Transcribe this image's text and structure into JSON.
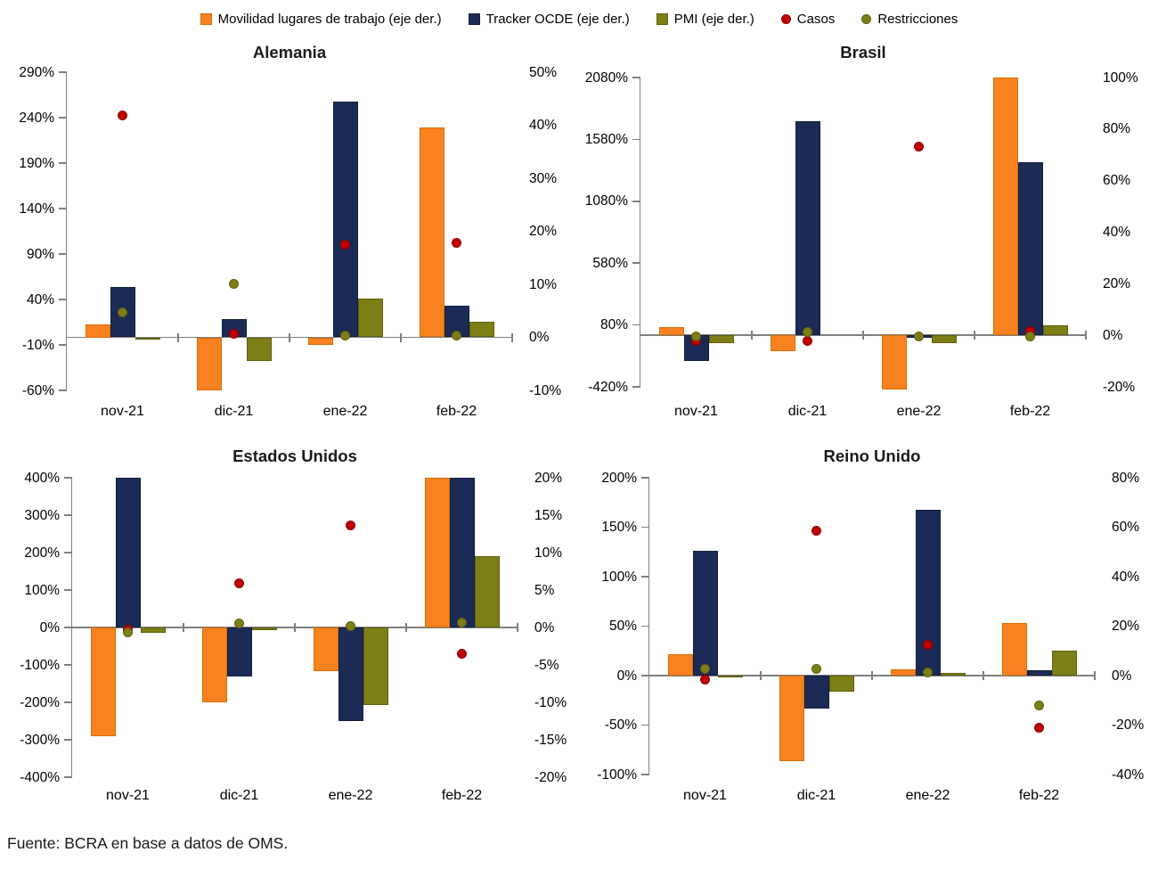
{
  "legend": {
    "items": [
      {
        "label": "Movilidad lugares de trabajo (eje der.)",
        "marker": "square",
        "series_key": "movilidad"
      },
      {
        "label": "Tracker OCDE (eje der.)",
        "marker": "square",
        "series_key": "tracker"
      },
      {
        "label": "PMI (eje der.)",
        "marker": "square",
        "series_key": "pmi"
      },
      {
        "label": "Casos",
        "marker": "dot",
        "series_key": "casos"
      },
      {
        "label": "Restricciones",
        "marker": "dot",
        "series_key": "restricciones"
      }
    ]
  },
  "footer": {
    "text": "Fuente: BCRA en base a datos de OMS."
  },
  "colors": {
    "movilidad": "#F8821F",
    "movilidad_border": "#D96D06",
    "tracker": "#1B2B55",
    "tracker_border": "#111F40",
    "pmi": "#7E7E17",
    "pmi_border": "#60600D",
    "casos": "#C00000",
    "casos_border": "#8F0000",
    "restricciones": "#7E7E17",
    "restricciones_border": "#60600D",
    "axis": "#7f7f7f"
  },
  "chart_data": [
    {
      "type": "bar",
      "title": "Alemania",
      "categories": [
        "nov-21",
        "dic-21",
        "ene-22",
        "feb-22"
      ],
      "left_axis": {
        "min": -60,
        "max": 290,
        "unit": "%",
        "ticks": [
          290,
          240,
          190,
          140,
          90,
          40,
          -10,
          -60
        ]
      },
      "right_axis": {
        "min": -10,
        "max": 50,
        "unit": "%",
        "ticks": [
          50,
          40,
          30,
          20,
          10,
          0,
          -10
        ]
      },
      "series": [
        {
          "name": "Movilidad lugares de trabajo (eje der.)",
          "key": "movilidad",
          "kind": "bar",
          "axis": "right",
          "values": [
            2.5,
            -10,
            -1.5,
            39.5
          ]
        },
        {
          "name": "Tracker OCDE (eje der.)",
          "key": "tracker",
          "kind": "bar",
          "axis": "right",
          "values": [
            9.5,
            3.5,
            44.5,
            6
          ]
        },
        {
          "name": "PMI (eje der.)",
          "key": "pmi",
          "kind": "bar",
          "axis": "right",
          "values": [
            -0.5,
            -4.5,
            7.3,
            3
          ]
        },
        {
          "name": "Casos",
          "key": "casos",
          "kind": "point",
          "axis": "left",
          "values": [
            242,
            2,
            100,
            102
          ]
        },
        {
          "name": "Restricciones",
          "key": "restricciones",
          "kind": "point",
          "axis": "left",
          "values": [
            26,
            57,
            0,
            0
          ]
        }
      ]
    },
    {
      "type": "bar",
      "title": "Brasil",
      "categories": [
        "nov-21",
        "dic-21",
        "ene-22",
        "feb-22"
      ],
      "left_axis": {
        "min": -420,
        "max": 2080,
        "unit": "%",
        "ticks": [
          2080,
          1580,
          1080,
          580,
          80,
          -420
        ]
      },
      "right_axis": {
        "min": -20,
        "max": 100,
        "unit": "%",
        "ticks": [
          100,
          80,
          60,
          40,
          20,
          0,
          -20
        ]
      },
      "series": [
        {
          "name": "Movilidad lugares de trabajo (eje der.)",
          "key": "movilidad",
          "kind": "bar",
          "axis": "right",
          "values": [
            3,
            -6,
            -21,
            100
          ]
        },
        {
          "name": "Tracker OCDE (eje der.)",
          "key": "tracker",
          "kind": "bar",
          "axis": "right",
          "values": [
            -10,
            83,
            -1,
            67
          ]
        },
        {
          "name": "PMI (eje der.)",
          "key": "pmi",
          "kind": "bar",
          "axis": "right",
          "values": [
            -3,
            0,
            -3,
            4
          ]
        },
        {
          "name": "Casos",
          "key": "casos",
          "kind": "point",
          "axis": "left",
          "values": [
            -48,
            -50,
            1520,
            30
          ]
        },
        {
          "name": "Restricciones",
          "key": "restricciones",
          "kind": "point",
          "axis": "left",
          "values": [
            -15,
            20,
            -15,
            -15
          ]
        }
      ]
    },
    {
      "type": "bar",
      "title": "Estados Unidos",
      "categories": [
        "nov-21",
        "dic-21",
        "ene-22",
        "feb-22"
      ],
      "left_axis": {
        "min": -400,
        "max": 400,
        "unit": "%",
        "ticks": [
          400,
          300,
          200,
          100,
          0,
          -100,
          -200,
          -300,
          -400
        ]
      },
      "right_axis": {
        "min": -20,
        "max": 20,
        "unit": "%",
        "ticks": [
          20,
          15,
          10,
          5,
          0,
          -5,
          -10,
          -15,
          -20
        ]
      },
      "series": [
        {
          "name": "Movilidad lugares de trabajo (eje der.)",
          "key": "movilidad",
          "kind": "bar",
          "axis": "right",
          "values": [
            -14.5,
            -10,
            -5.8,
            20
          ]
        },
        {
          "name": "Tracker OCDE (eje der.)",
          "key": "tracker",
          "kind": "bar",
          "axis": "right",
          "values": [
            20,
            -6.5,
            -12.5,
            20
          ]
        },
        {
          "name": "PMI (eje der.)",
          "key": "pmi",
          "kind": "bar",
          "axis": "right",
          "values": [
            -0.7,
            -0.4,
            -10.4,
            9.5
          ]
        },
        {
          "name": "Casos",
          "key": "casos",
          "kind": "point",
          "axis": "left",
          "values": [
            -5,
            118,
            273,
            -70
          ]
        },
        {
          "name": "Restricciones",
          "key": "restricciones",
          "kind": "point",
          "axis": "left",
          "values": [
            -14,
            11,
            3,
            12
          ]
        }
      ]
    },
    {
      "type": "bar",
      "title": "Reino Unido",
      "categories": [
        "nov-21",
        "dic-21",
        "ene-22",
        "feb-22"
      ],
      "left_axis": {
        "min": -100,
        "max": 200,
        "unit": "%",
        "ticks": [
          200,
          150,
          100,
          50,
          0,
          -50,
          -100
        ]
      },
      "right_axis": {
        "min": -40,
        "max": 80,
        "unit": "%",
        "ticks": [
          80,
          60,
          40,
          20,
          0,
          -20,
          -40
        ]
      },
      "series": [
        {
          "name": "Movilidad lugares de trabajo (eje der.)",
          "key": "movilidad",
          "kind": "bar",
          "axis": "right",
          "values": [
            8.5,
            -34.5,
            2.7,
            21.3
          ]
        },
        {
          "name": "Tracker OCDE (eje der.)",
          "key": "tracker",
          "kind": "bar",
          "axis": "right",
          "values": [
            50.5,
            -13.3,
            67,
            2
          ]
        },
        {
          "name": "PMI (eje der.)",
          "key": "pmi",
          "kind": "bar",
          "axis": "right",
          "values": [
            -0.5,
            -6.4,
            1,
            10.2
          ]
        },
        {
          "name": "Casos",
          "key": "casos",
          "kind": "point",
          "axis": "left",
          "values": [
            -4,
            146,
            31,
            -53
          ]
        },
        {
          "name": "Restricciones",
          "key": "restricciones",
          "kind": "point",
          "axis": "left",
          "values": [
            7,
            7,
            3,
            -30
          ]
        }
      ]
    }
  ]
}
